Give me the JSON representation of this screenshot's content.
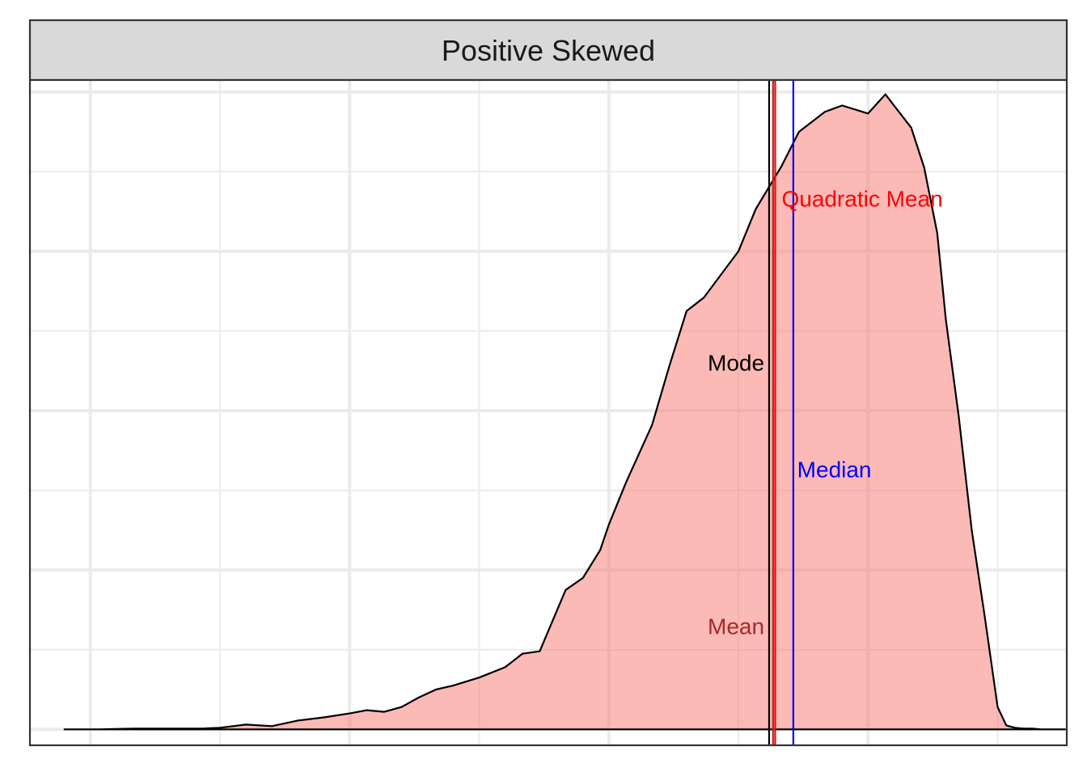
{
  "chart_data": {
    "type": "area",
    "title": "Positive Skewed",
    "xlabel": "",
    "ylabel": "",
    "xlim": [
      -0.22,
      0.98
    ],
    "ylim": [
      -0.002,
      0.0815
    ],
    "grid": true,
    "x_major_breaks": [
      -0.15,
      0.15,
      0.45,
      0.75
    ],
    "x_minor_breaks": [
      0.0,
      0.3,
      0.6,
      0.9
    ],
    "y_major_breaks": [
      0.0,
      0.02,
      0.04,
      0.06,
      0.08
    ],
    "y_minor_breaks": [
      0.01,
      0.03,
      0.05,
      0.07
    ],
    "fill_color": "#F8766D",
    "fill_opacity": 0.5,
    "line_color": "#000000",
    "series": [
      {
        "name": "",
        "x": [
          -0.18,
          -0.14,
          -0.1,
          -0.06,
          -0.02,
          0.0,
          0.03,
          0.06,
          0.09,
          0.12,
          0.15,
          0.17,
          0.19,
          0.21,
          0.23,
          0.25,
          0.27,
          0.3,
          0.33,
          0.35,
          0.37,
          0.4,
          0.42,
          0.44,
          0.45,
          0.47,
          0.5,
          0.52,
          0.54,
          0.56,
          0.6,
          0.62,
          0.65,
          0.67,
          0.7,
          0.72,
          0.75,
          0.77,
          0.8,
          0.815,
          0.83,
          0.84,
          0.855,
          0.87,
          0.885,
          0.9,
          0.91,
          0.92,
          0.93,
          0.94,
          0.95,
          0.97,
          0.978,
          0.978
        ],
        "y": [
          0.0,
          0.0,
          0.0001,
          0.0001,
          0.0001,
          0.0002,
          0.0006,
          0.0004,
          0.0011,
          0.0015,
          0.002,
          0.0024,
          0.0022,
          0.0028,
          0.004,
          0.005,
          0.0055,
          0.0065,
          0.0078,
          0.0095,
          0.0098,
          0.0175,
          0.019,
          0.0225,
          0.0257,
          0.031,
          0.0382,
          0.0456,
          0.0525,
          0.0542,
          0.06,
          0.0653,
          0.0707,
          0.075,
          0.0775,
          0.0783,
          0.0773,
          0.0797,
          0.0755,
          0.0705,
          0.0623,
          0.0515,
          0.0392,
          0.025,
          0.0142,
          0.0028,
          0.0005,
          0.0002,
          0.0001,
          0.0001,
          0.0,
          0.0,
          0.0,
          0.0
        ]
      }
    ],
    "vlines": [
      {
        "name": "Mode",
        "x": 0.6355,
        "color": "#000000"
      },
      {
        "name": "Mean",
        "x": 0.64,
        "color": "#A52A2A"
      },
      {
        "name": "Quadratic Mean",
        "x": 0.6425,
        "color": "#FF0000"
      },
      {
        "name": "Median",
        "x": 0.6635,
        "color": "#0000FF"
      }
    ],
    "annotations": [
      {
        "text": "Mode",
        "x": 0.63,
        "y": 0.046,
        "anchor": "end",
        "color": "#000000"
      },
      {
        "text": "Quadratic Mean",
        "x": 0.65,
        "y": 0.0666,
        "anchor": "start",
        "color": "#FF0000"
      },
      {
        "text": "Median",
        "x": 0.668,
        "y": 0.0326,
        "anchor": "start",
        "color": "#0000FF"
      },
      {
        "text": "Mean",
        "x": 0.63,
        "y": 0.0129,
        "anchor": "end",
        "color": "#A52A2A"
      }
    ]
  }
}
